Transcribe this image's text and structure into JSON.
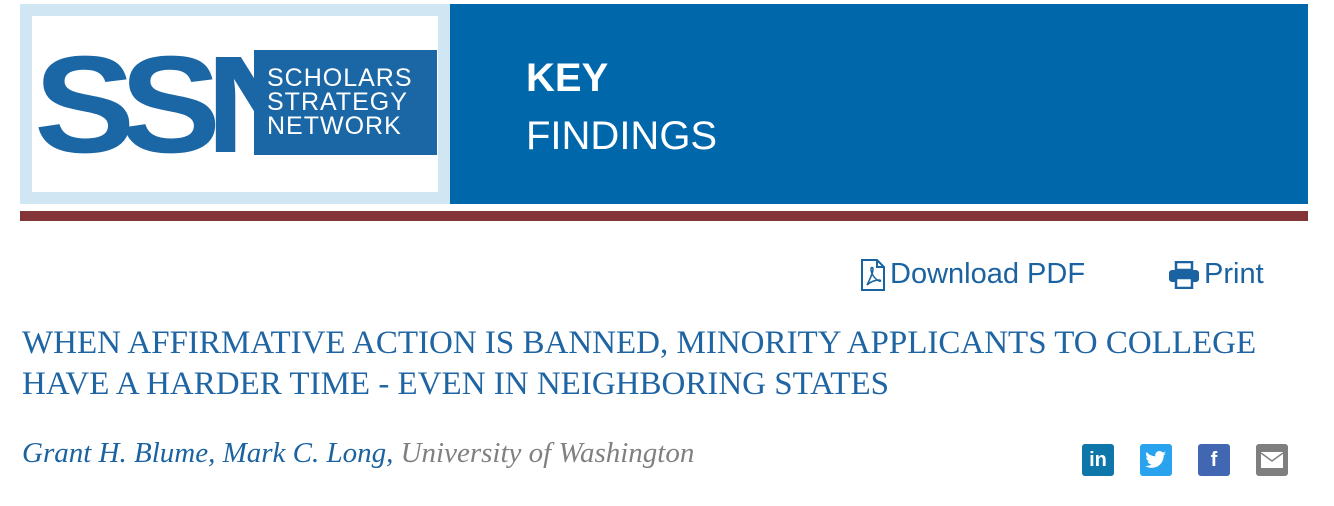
{
  "logo": {
    "letters": "SSN",
    "line1": "SCHOLARS",
    "line2": "STRATEGY",
    "line3": "NETWORK"
  },
  "header": {
    "line1": "KEY",
    "line2": "FINDINGS"
  },
  "actions": {
    "download": "Download PDF",
    "print": "Print"
  },
  "article": {
    "title": "WHEN AFFIRMATIVE ACTION IS BANNED, MINORITY APPLICANTS TO COLLEGE HAVE A HARDER TIME - EVEN IN NEIGHBORING STATES",
    "authors": "Grant H. Blume, Mark C. Long,",
    "affiliation": "University of Washington"
  },
  "social": {
    "linkedin": "in",
    "facebook": "f"
  },
  "colors": {
    "brand_blue": "#0067ab",
    "accent_bar": "#843537",
    "linkedin": "#0e76a8",
    "twitter": "#2aa3ef",
    "facebook": "#4267b2",
    "email": "#7f7f7f"
  }
}
